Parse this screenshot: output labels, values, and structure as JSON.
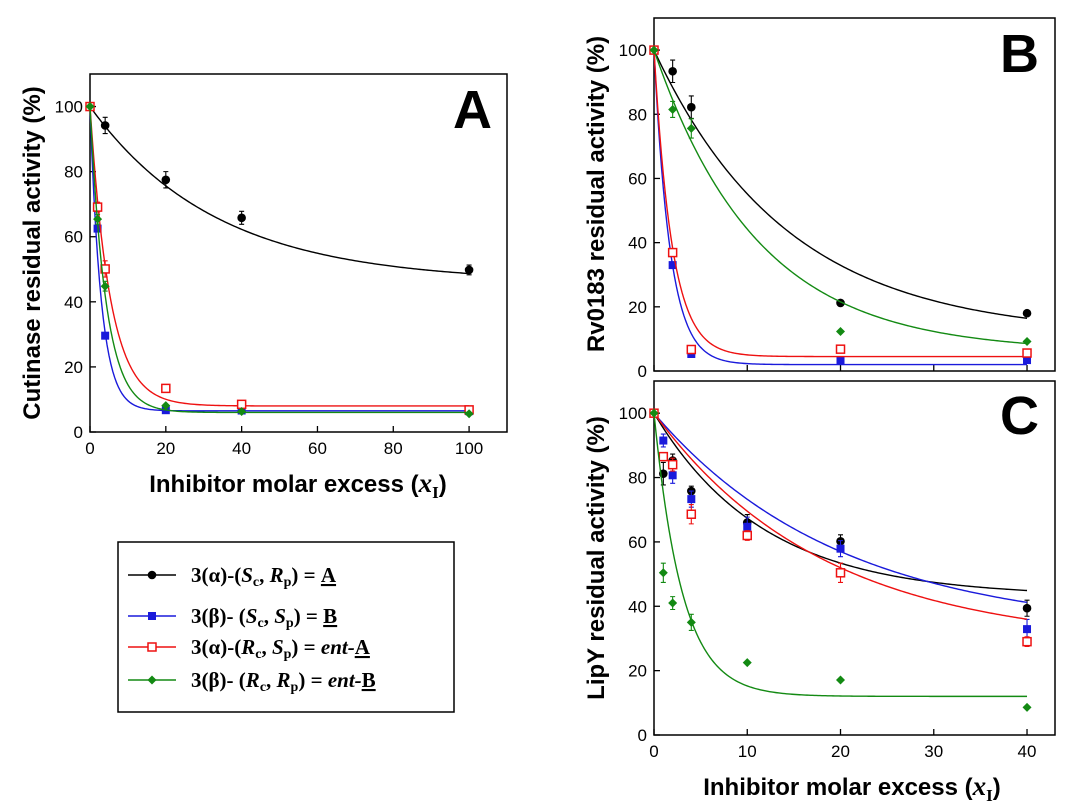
{
  "chart_data": [
    {
      "type": "scatter",
      "panel_label": "A",
      "xlabel": "Inhibitor molar excess (xI)",
      "ylabel": "Cutinase residual activity (%)",
      "xlim": [
        0,
        110
      ],
      "ylim": [
        0,
        110
      ],
      "xticks": [
        0,
        20,
        40,
        60,
        80,
        100
      ],
      "yticks": [
        0,
        20,
        40,
        60,
        80,
        100
      ],
      "series": [
        {
          "name": "3(α)-(Sc, Rp) = A",
          "color": "#000000",
          "marker": "circle",
          "points": [
            [
              0,
              100
            ],
            [
              4,
              94.2
            ],
            [
              20,
              77.5
            ],
            [
              40,
              65.8
            ],
            [
              100,
              49.8
            ]
          ],
          "errors": [
            0,
            2.5,
            2.5,
            2.0,
            1.5
          ],
          "fit": {
            "plateau": 46,
            "k": 0.03
          }
        },
        {
          "name": "3(β)- (Sc, Sp) = B",
          "color": "#1a1adb",
          "marker": "square",
          "points": [
            [
              0,
              100
            ],
            [
              2,
              62.5
            ],
            [
              4,
              29.6
            ],
            [
              20,
              6.7
            ],
            [
              40,
              6.6
            ],
            [
              100,
              6.4
            ]
          ],
          "errors": [
            0,
            0,
            0,
            0,
            0,
            0
          ],
          "fit": {
            "plateau": 6.5,
            "k": 0.34
          }
        },
        {
          "name": "3(α)-(Rc, Sp) = ent-A",
          "color": "#ee1111",
          "marker": "open-square",
          "points": [
            [
              0,
              100
            ],
            [
              2,
              69.1
            ],
            [
              4,
              50.1
            ],
            [
              20,
              13.4
            ],
            [
              40,
              8.5
            ],
            [
              100,
              6.8
            ]
          ],
          "errors": [
            0,
            1.5,
            2.5,
            0,
            0,
            0
          ],
          "fit": {
            "plateau": 8,
            "k": 0.19
          }
        },
        {
          "name": "3(β)- (Rc, Rp) = ent-B",
          "color": "#138a13",
          "marker": "diamond",
          "points": [
            [
              0,
              100
            ],
            [
              2,
              65.4
            ],
            [
              4,
              44.8
            ],
            [
              20,
              8.1
            ],
            [
              40,
              6.3
            ],
            [
              100,
              5.6
            ]
          ],
          "errors": [
            0,
            1.5,
            1.5,
            0,
            0,
            0
          ],
          "fit": {
            "plateau": 6,
            "k": 0.24
          }
        }
      ]
    },
    {
      "type": "scatter",
      "panel_label": "B",
      "xlabel": "",
      "ylabel": "Rv0183 residual activity (%)",
      "xlim": [
        0,
        43
      ],
      "ylim": [
        0,
        110
      ],
      "xticks": [],
      "yticks": [
        0,
        20,
        40,
        60,
        80,
        100
      ],
      "series": [
        {
          "name": "3(α)-(Sc, Rp) = A",
          "color": "#000000",
          "marker": "circle",
          "points": [
            [
              0,
              100
            ],
            [
              2,
              93.4
            ],
            [
              4,
              82.2
            ],
            [
              20,
              21.2
            ],
            [
              40,
              18.0
            ]
          ],
          "errors": [
            0,
            3.5,
            3.5,
            0,
            0
          ],
          "fit": {
            "plateau": 11,
            "k": 0.07
          }
        },
        {
          "name": "3(β)- (Sc, Sp) = B",
          "color": "#1a1adb",
          "marker": "square",
          "points": [
            [
              0,
              100
            ],
            [
              2,
              33.0
            ],
            [
              4,
              5.3
            ],
            [
              20,
              3.3
            ],
            [
              40,
              3.4
            ]
          ],
          "errors": [
            0,
            0,
            0,
            0,
            0
          ],
          "fit": {
            "plateau": 2,
            "k": 0.58
          }
        },
        {
          "name": "3(α)-(Rc, Sp) = ent-A",
          "color": "#ee1111",
          "marker": "open-square",
          "points": [
            [
              0,
              100
            ],
            [
              2,
              36.9
            ],
            [
              4,
              6.7
            ],
            [
              20,
              6.8
            ],
            [
              40,
              5.6
            ]
          ],
          "errors": [
            0,
            0,
            0,
            0,
            0
          ],
          "fit": {
            "plateau": 4.5,
            "k": 0.52
          }
        },
        {
          "name": "3(β)- (Rc, Rp) = ent-B",
          "color": "#138a13",
          "marker": "diamond",
          "points": [
            [
              0,
              100
            ],
            [
              2,
              81.5
            ],
            [
              4,
              75.6
            ],
            [
              20,
              12.3
            ],
            [
              40,
              9.2
            ]
          ],
          "errors": [
            0,
            2.5,
            3.0,
            0,
            0
          ],
          "fit": {
            "plateau": 6,
            "k": 0.09
          }
        }
      ]
    },
    {
      "type": "scatter",
      "panel_label": "C",
      "xlabel": "Inhibitor molar excess (xI)",
      "ylabel": "LipY residual activity (%)",
      "xlim": [
        0,
        43
      ],
      "ylim": [
        0,
        110
      ],
      "xticks": [
        0,
        10,
        20,
        30,
        40
      ],
      "yticks": [
        0,
        20,
        40,
        60,
        80,
        100
      ],
      "series": [
        {
          "name": "3(α)-(Sc, Rp) = A",
          "color": "#000000",
          "marker": "circle",
          "points": [
            [
              0,
              100
            ],
            [
              1,
              81.2
            ],
            [
              2,
              85.3
            ],
            [
              4,
              75.8
            ],
            [
              10,
              66.0
            ],
            [
              20,
              60.2
            ],
            [
              40,
              39.4
            ]
          ],
          "errors": [
            0,
            3.5,
            2.0,
            1.5,
            2.5,
            2.0,
            2.5
          ],
          "fit": {
            "plateau": 43,
            "k": 0.085
          }
        },
        {
          "name": "3(β)- (Sc, Sp) = B",
          "color": "#1a1adb",
          "marker": "square",
          "points": [
            [
              0,
              100
            ],
            [
              1,
              91.5
            ],
            [
              2,
              80.7
            ],
            [
              4,
              73.3
            ],
            [
              10,
              64.7
            ],
            [
              20,
              57.9
            ],
            [
              40,
              32.9
            ]
          ],
          "errors": [
            0,
            2.0,
            2.5,
            2.5,
            3.0,
            2.5,
            3.0
          ],
          "fit": {
            "plateau": 32,
            "k": 0.05
          }
        },
        {
          "name": "3(α)-(Rc, Sp) = ent-A",
          "color": "#ee1111",
          "marker": "open-square",
          "points": [
            [
              0,
              100
            ],
            [
              1,
              86.5
            ],
            [
              2,
              84.0
            ],
            [
              4,
              68.6
            ],
            [
              10,
              62.0
            ],
            [
              20,
              50.4
            ],
            [
              40,
              29.0
            ]
          ],
          "errors": [
            0,
            0,
            2.0,
            3.0,
            1.5,
            3.0,
            1.5
          ],
          "fit": {
            "plateau": 28,
            "k": 0.055
          }
        },
        {
          "name": "3(β)- (Rc, Rp) = ent-B",
          "color": "#138a13",
          "marker": "diamond",
          "points": [
            [
              0,
              100
            ],
            [
              1,
              50.4
            ],
            [
              2,
              41.0
            ],
            [
              4,
              35.0
            ],
            [
              10,
              22.5
            ],
            [
              20,
              17.1
            ],
            [
              40,
              8.6
            ]
          ],
          "errors": [
            0,
            3.0,
            2.0,
            2.5,
            0,
            0,
            0
          ],
          "fit": {
            "plateau": 12,
            "k": 0.33
          }
        }
      ]
    }
  ],
  "legend": {
    "placement": "below panel A",
    "entries": [
      {
        "prefix": "3(α)-(",
        "c": "S",
        "p": "R",
        "rhs_italic": "",
        "rhs_letter": "A",
        "color": "#000000",
        "marker": "circle"
      },
      {
        "prefix": "3(β)- (",
        "c": "S",
        "p": "S",
        "rhs_italic": "",
        "rhs_letter": "B",
        "color": "#1a1adb",
        "marker": "square"
      },
      {
        "prefix": "3(α)-(",
        "c": "R",
        "p": "S",
        "rhs_italic": "ent-",
        "rhs_letter": "A",
        "color": "#ee1111",
        "marker": "open-square"
      },
      {
        "prefix": "3(β)- (",
        "c": "R",
        "p": "R",
        "rhs_italic": "ent-",
        "rhs_letter": "B",
        "color": "#138a13",
        "marker": "diamond"
      }
    ]
  },
  "axis_text": {
    "a_ylabel": "Cutinase residual activity (%)",
    "b_ylabel": "Rv0183 residual activity (%)",
    "c_ylabel": "LipY residual activity (%)",
    "xlabel_main": "Inhibitor molar excess (",
    "xlabel_var": "x",
    "xlabel_sub": "I",
    "xlabel_close": ")"
  }
}
